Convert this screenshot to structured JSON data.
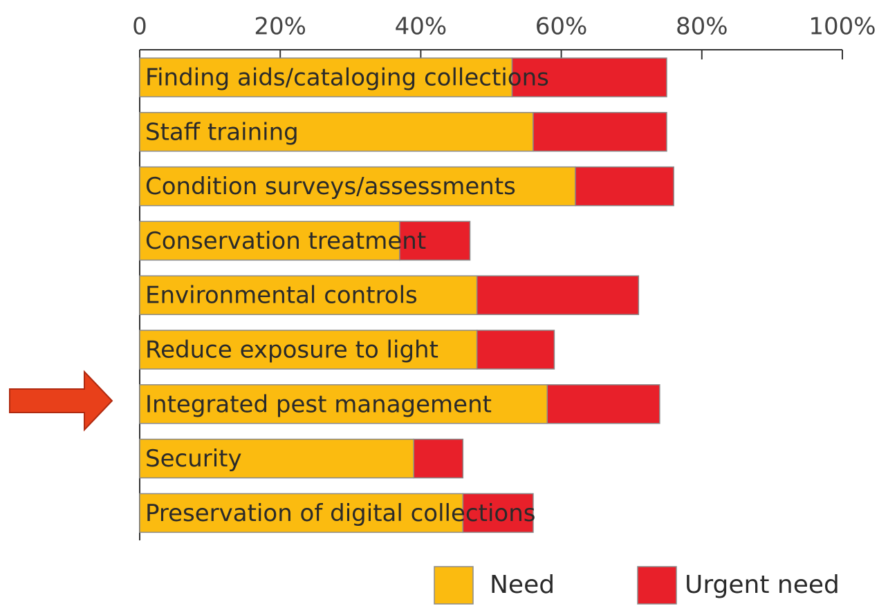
{
  "chart_data": {
    "type": "stacked-bar-horizontal",
    "categories": [
      "Finding aids/cataloging collections",
      "Staff training",
      "Condition surveys/assessments",
      "Conservation treatment",
      "Environmental controls",
      "Reduce exposure to light",
      "Integrated pest management",
      "Security",
      "Preservation of digital collections"
    ],
    "series": [
      {
        "name": "Need",
        "color": "#fbbb10",
        "values": [
          53,
          56,
          62,
          37,
          48,
          48,
          58,
          39,
          46
        ]
      },
      {
        "name": "Urgent need",
        "color": "#e8202a",
        "values": [
          22,
          19,
          14,
          10,
          23,
          11,
          16,
          7,
          10
        ]
      }
    ],
    "xlim": [
      0,
      100
    ],
    "xticks": [
      0,
      {
        "value": 20,
        "label": "20%"
      },
      {
        "value": 40,
        "label": "40%"
      },
      {
        "value": 60,
        "label": "60%"
      },
      {
        "value": 80,
        "label": "80%"
      },
      {
        "value": 100,
        "label": "100%"
      }
    ]
  }
}
